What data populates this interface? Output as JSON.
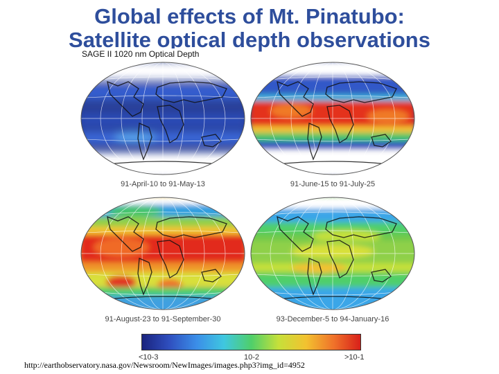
{
  "slide": {
    "title_line1": "Global effects of Mt. Pinatubo:",
    "title_line2": "Satellite optical depth observations",
    "figure_caption": "SAGE II 1020 nm Optical Depth",
    "source_url": "http://earthobservatory.nasa.gov/Newsroom/NewImages/images.php3?img_id=4952"
  },
  "panels": [
    {
      "label": "91-April-10 to 91-May-13"
    },
    {
      "label": "91-June-15 to 91-July-25"
    },
    {
      "label": "91-August-23 to 91-September-30"
    },
    {
      "label": "93-December-5 to 94-January-16"
    }
  ],
  "colorbar": {
    "min_label": "<10-3",
    "mid_label": "10-2",
    "max_label": ">10-1",
    "colors": [
      "#1a237e",
      "#2f4fbf",
      "#3b8ee8",
      "#3fc7e0",
      "#4fcf6a",
      "#c6e03a",
      "#f2c230",
      "#f0742a",
      "#d8201a"
    ]
  },
  "colors": {
    "title": "#2e4e9c"
  }
}
